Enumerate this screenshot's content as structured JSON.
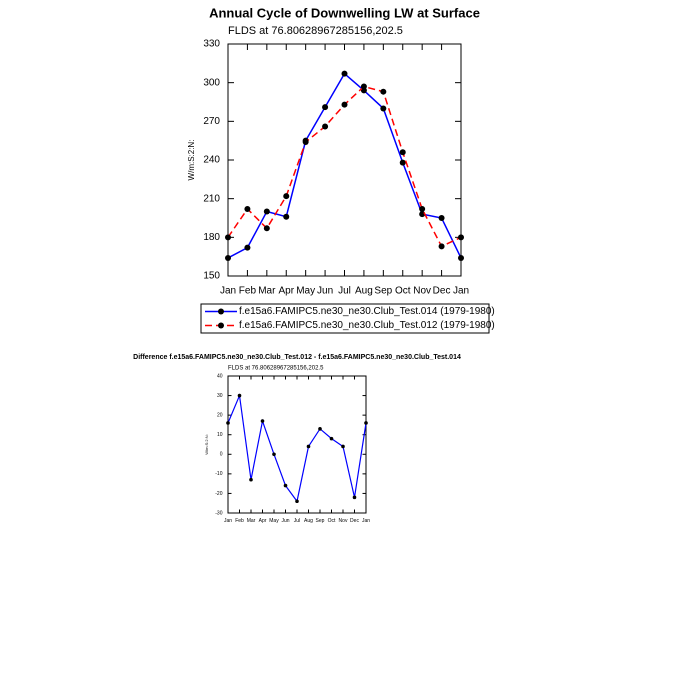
{
  "chart_data": [
    {
      "type": "line",
      "title": "Annual Cycle of Downwelling LW at Surface",
      "subtitle": "FLDS at 76.80628967285156,202.5",
      "y_label": "W/m:S:2:N:",
      "categories": [
        "Jan",
        "Feb",
        "Mar",
        "Apr",
        "May",
        "Jun",
        "Jul",
        "Aug",
        "Sep",
        "Oct",
        "Nov",
        "Dec",
        "Jan"
      ],
      "series": [
        {
          "name": "f.e15a6.FAMIPC5.ne30_ne30.Club_Test.014 (1979-1980)",
          "color": "#0000ff",
          "dash": false,
          "values": [
            164,
            172,
            200,
            196,
            255,
            281,
            307,
            294,
            280,
            238,
            198,
            195,
            164
          ]
        },
        {
          "name": "f.e15a6.FAMIPC5.ne30_ne30.Club_Test.012 (1979-1980)",
          "color": "#ff0000",
          "dash": true,
          "values": [
            180,
            202,
            187,
            212,
            254,
            266,
            283,
            297,
            293,
            246,
            202,
            173,
            180
          ]
        }
      ],
      "ylim": [
        150,
        330
      ],
      "yticks": [
        150,
        180,
        210,
        240,
        270,
        300,
        330
      ]
    },
    {
      "type": "line",
      "title": "Difference f.e15a6.FAMIPC5.ne30_ne30.Club_Test.012 - f.e15a6.FAMIPC5.ne30_ne30.Club_Test.014",
      "subtitle": "FLDS at 76.80628967285156,202.5",
      "y_label": "W/m:S:2:N:",
      "categories": [
        "Jan",
        "Feb",
        "Mar",
        "Apr",
        "May",
        "Jun",
        "Jul",
        "Aug",
        "Sep",
        "Oct",
        "Nov",
        "Dec",
        "Jan"
      ],
      "series": [
        {
          "color": "#0000ff",
          "dash": false,
          "values": [
            16,
            30,
            -13,
            17,
            0,
            -16,
            -24,
            4,
            13,
            8,
            4,
            -22,
            16
          ]
        }
      ],
      "ylim": [
        -30,
        40
      ],
      "yticks": [
        -30,
        -20,
        -10,
        0,
        10,
        20,
        30,
        40
      ]
    }
  ]
}
